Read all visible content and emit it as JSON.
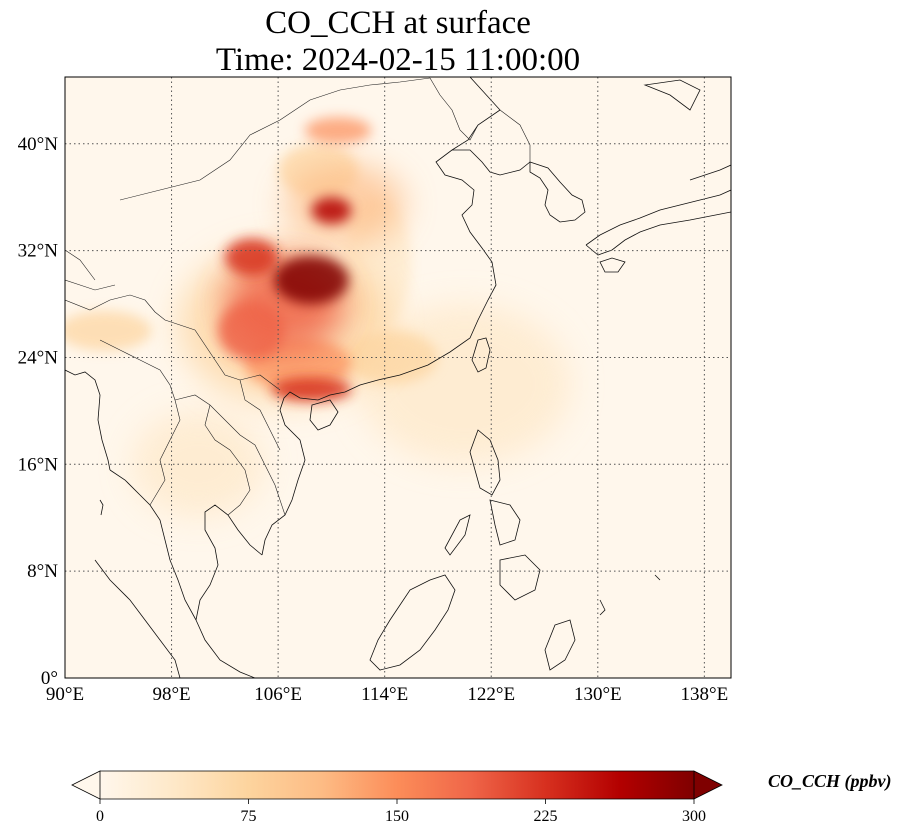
{
  "title": {
    "line1": "CO_CCH at surface",
    "line2": "Time: 2024-02-15 11:00:00"
  },
  "map": {
    "projection": "PlateCarree",
    "lon_range": [
      90,
      140
    ],
    "lat_range": [
      0,
      45
    ],
    "x_ticks": [
      {
        "lon": 90,
        "label": "90°E"
      },
      {
        "lon": 98,
        "label": "98°E"
      },
      {
        "lon": 106,
        "label": "106°E"
      },
      {
        "lon": 114,
        "label": "114°E"
      },
      {
        "lon": 122,
        "label": "122°E"
      },
      {
        "lon": 130,
        "label": "130°E"
      },
      {
        "lon": 138,
        "label": "138°E"
      }
    ],
    "y_ticks": [
      {
        "lat": 0,
        "label": "0°"
      },
      {
        "lat": 8,
        "label": "8°N"
      },
      {
        "lat": 16,
        "label": "16°N"
      },
      {
        "lat": 24,
        "label": "24°N"
      },
      {
        "lat": 32,
        "label": "32°N"
      },
      {
        "lat": 40,
        "label": "40°N"
      }
    ],
    "gridlines": true,
    "colormap": "OrRd"
  },
  "colorbar": {
    "title": "CO_CCH (ppbv)",
    "min": 0,
    "max": 300,
    "extend": "both",
    "ticks": [
      {
        "value": 0,
        "label": "0"
      },
      {
        "value": 75,
        "label": "75"
      },
      {
        "value": 150,
        "label": "150"
      },
      {
        "value": 225,
        "label": "225"
      },
      {
        "value": 300,
        "label": "300"
      }
    ],
    "colors": [
      "#fff7ec",
      "#fee8c8",
      "#fdd49e",
      "#fdbb84",
      "#fc8d59",
      "#ef6548",
      "#d7301f",
      "#b30000",
      "#7f0000"
    ]
  },
  "field_blobs": [
    {
      "lon": 108.5,
      "lat": 29.8,
      "rx": 2.8,
      "ry": 1.8,
      "value": 300
    },
    {
      "lon": 106.5,
      "lat": 28.0,
      "rx": 4.5,
      "ry": 3.5,
      "value": 200
    },
    {
      "lon": 104.0,
      "lat": 31.5,
      "rx": 2.0,
      "ry": 1.4,
      "value": 230
    },
    {
      "lon": 104.0,
      "lat": 26.0,
      "rx": 2.5,
      "ry": 2.2,
      "value": 180
    },
    {
      "lon": 107.5,
      "lat": 23.5,
      "rx": 4.0,
      "ry": 2.0,
      "value": 150
    },
    {
      "lon": 108.5,
      "lat": 21.6,
      "rx": 3.0,
      "ry": 0.9,
      "value": 220
    },
    {
      "lon": 106.5,
      "lat": 26.5,
      "rx": 8.0,
      "ry": 6.0,
      "value": 90
    },
    {
      "lon": 110.0,
      "lat": 35.0,
      "rx": 1.5,
      "ry": 1.0,
      "value": 270
    },
    {
      "lon": 111.0,
      "lat": 35.5,
      "rx": 4.5,
      "ry": 3.0,
      "value": 120
    },
    {
      "lon": 109.0,
      "lat": 38.0,
      "rx": 3.0,
      "ry": 2.0,
      "value": 90
    },
    {
      "lon": 110.5,
      "lat": 41.0,
      "rx": 2.5,
      "ry": 1.0,
      "value": 140
    },
    {
      "lon": 113.5,
      "lat": 31.0,
      "rx": 2.5,
      "ry": 5.0,
      "value": 55
    },
    {
      "lon": 114.5,
      "lat": 24.0,
      "rx": 3.5,
      "ry": 2.0,
      "value": 60
    },
    {
      "lon": 93.0,
      "lat": 26.0,
      "rx": 3.5,
      "ry": 1.5,
      "value": 60
    },
    {
      "lon": 100.0,
      "lat": 16.0,
      "rx": 5.0,
      "ry": 4.0,
      "value": 25
    },
    {
      "lon": 120.0,
      "lat": 22.0,
      "rx": 8.0,
      "ry": 6.0,
      "value": 20
    }
  ]
}
